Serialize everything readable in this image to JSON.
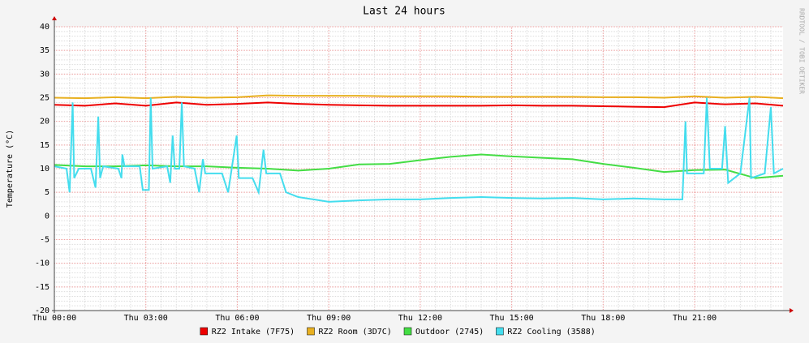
{
  "chart_data": {
    "type": "line",
    "title": "Last 24 hours",
    "y_label": "Temperature (°C)",
    "watermark": "RRDTOOL / TOBI OETIKER",
    "xlim": [
      0,
      23.9
    ],
    "xticks": [
      {
        "value": 0,
        "label": "Thu 00:00"
      },
      {
        "value": 3,
        "label": "Thu 03:00"
      },
      {
        "value": 6,
        "label": "Thu 06:00"
      },
      {
        "value": 9,
        "label": "Thu 09:00"
      },
      {
        "value": 12,
        "label": "Thu 12:00"
      },
      {
        "value": 15,
        "label": "Thu 15:00"
      },
      {
        "value": 18,
        "label": "Thu 18:00"
      },
      {
        "value": 21,
        "label": "Thu 21:00"
      }
    ],
    "ylim": [
      -20,
      40
    ],
    "yticks": [
      -20,
      -15,
      -10,
      -5,
      0,
      5,
      10,
      15,
      20,
      25,
      30,
      35,
      40
    ],
    "grid": true,
    "minor_grid": {
      "x": 0.5,
      "y": 1
    },
    "legend": "bottom",
    "series": [
      {
        "name": "RZ2 Intake (7F75)",
        "color": "#ee0000",
        "x": [
          0,
          1,
          2,
          3,
          4,
          5,
          6,
          7,
          8,
          9,
          10,
          11,
          12,
          13,
          14,
          15,
          16,
          17,
          18,
          19,
          20,
          21,
          22,
          23,
          23.9
        ],
        "values": [
          23.5,
          23.3,
          23.8,
          23.3,
          24.0,
          23.5,
          23.7,
          24.0,
          23.7,
          23.5,
          23.4,
          23.3,
          23.3,
          23.3,
          23.3,
          23.4,
          23.3,
          23.3,
          23.2,
          23.1,
          23.0,
          24.0,
          23.6,
          23.8,
          23.3
        ]
      },
      {
        "name": "RZ2 Room (3D7C)",
        "color": "#e8b020",
        "x": [
          0,
          1,
          2,
          3,
          4,
          5,
          6,
          7,
          8,
          9,
          10,
          11,
          12,
          13,
          14,
          15,
          16,
          17,
          18,
          19,
          20,
          21,
          22,
          23,
          23.9
        ],
        "values": [
          25.0,
          24.9,
          25.1,
          24.9,
          25.2,
          25.0,
          25.1,
          25.5,
          25.4,
          25.4,
          25.4,
          25.3,
          25.3,
          25.3,
          25.2,
          25.2,
          25.2,
          25.2,
          25.1,
          25.1,
          25.0,
          25.3,
          25.0,
          25.2,
          24.9
        ]
      },
      {
        "name": "Outdoor (2745)",
        "color": "#44dd44",
        "x": [
          0,
          1,
          2,
          3,
          4,
          5,
          6,
          7,
          8,
          9,
          10,
          11,
          12,
          13,
          14,
          15,
          16,
          17,
          18,
          19,
          20,
          21,
          22,
          23,
          23.9
        ],
        "values": [
          10.8,
          10.5,
          10.5,
          10.7,
          10.5,
          10.5,
          10.2,
          10.0,
          9.6,
          10.0,
          10.9,
          11.0,
          11.8,
          12.5,
          13.0,
          12.6,
          12.3,
          12.0,
          11.0,
          10.2,
          9.3,
          9.7,
          9.8,
          8.0,
          8.5
        ]
      },
      {
        "name": "RZ2 Cooling (3588)",
        "color": "#44ddee",
        "x": [
          0,
          0.4,
          0.5,
          0.6,
          0.65,
          0.8,
          1.2,
          1.35,
          1.44,
          1.5,
          1.6,
          2.1,
          2.2,
          2.23,
          2.3,
          2.8,
          2.9,
          3.1,
          3.16,
          3.22,
          3.7,
          3.8,
          3.88,
          3.95,
          4.1,
          4.18,
          4.25,
          4.6,
          4.75,
          4.87,
          4.95,
          5.5,
          5.7,
          5.98,
          6.05,
          6.5,
          6.7,
          6.86,
          6.95,
          7.4,
          7.6,
          8,
          8.5,
          9,
          10,
          11,
          12,
          13,
          14,
          15,
          16,
          17,
          18,
          19,
          20,
          20.6,
          20.7,
          20.75,
          21.3,
          21.4,
          21.5,
          21.9,
          22.0,
          22.1,
          22.5,
          22.8,
          22.85,
          23.3,
          23.5,
          23.6,
          23.9
        ],
        "values": [
          10.5,
          10,
          5,
          24,
          8,
          10,
          10,
          6,
          21,
          8,
          10.5,
          10,
          8,
          13,
          10.5,
          10.5,
          5.5,
          5.5,
          25,
          10,
          10.5,
          7,
          17,
          10,
          10,
          24,
          10.5,
          10,
          5,
          12,
          9,
          9,
          5,
          17,
          8,
          8,
          5,
          14,
          9,
          9,
          5,
          4,
          3.5,
          3,
          3.3,
          3.5,
          3.5,
          3.8,
          4,
          3.8,
          3.7,
          3.8,
          3.5,
          3.7,
          3.5,
          3.5,
          20,
          9,
          9,
          25,
          10,
          10,
          19,
          7,
          9,
          25,
          8,
          9,
          23,
          9,
          10
        ]
      }
    ]
  }
}
